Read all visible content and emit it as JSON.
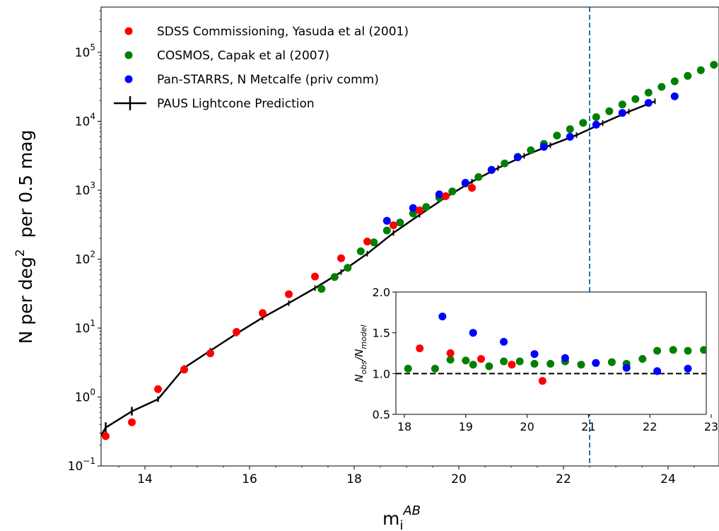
{
  "chart_data": {
    "type": "scatter",
    "main": {
      "xlabel": "m",
      "xlabel_sub": "i",
      "xlabel_sup": "AB",
      "ylabel_parts": [
        "N per deg",
        "2",
        "  per 0.5 mag"
      ],
      "xlim": [
        13,
        25
      ],
      "ylim": [
        0.1,
        500000
      ],
      "yscale": "log",
      "x_ticks": [
        14,
        16,
        18,
        20,
        22,
        24
      ],
      "y_ticks": [
        {
          "value": 0.1,
          "base": "10",
          "exp": "−1"
        },
        {
          "value": 1,
          "base": "10",
          "exp": "0"
        },
        {
          "value": 10,
          "base": "10",
          "exp": "1"
        },
        {
          "value": 100,
          "base": "10",
          "exp": "2"
        },
        {
          "value": 1000,
          "base": "10",
          "exp": "3"
        },
        {
          "value": 10000,
          "base": "10",
          "exp": "4"
        },
        {
          "value": 100000,
          "base": "10",
          "exp": "5"
        }
      ],
      "vline": {
        "x": 22.5,
        "color": "#1f77b4",
        "style": "dashed"
      },
      "legend_position": "top-left",
      "series": [
        {
          "name": "SDSS Commissioning, Yasuda et al (2001)",
          "color": "#ff0000",
          "marker": "circle",
          "points": [
            [
              13.25,
              0.27
            ],
            [
              13.75,
              0.43
            ],
            [
              14.25,
              1.3
            ],
            [
              14.75,
              2.5
            ],
            [
              15.25,
              4.3
            ],
            [
              15.75,
              8.8
            ],
            [
              16.25,
              16.5
            ],
            [
              16.75,
              31
            ],
            [
              17.25,
              56
            ],
            [
              17.75,
              103
            ],
            [
              18.25,
              180
            ],
            [
              18.75,
              310
            ],
            [
              19.25,
              510
            ],
            [
              19.75,
              820
            ],
            [
              20.25,
              1080
            ]
          ]
        },
        {
          "name": "COSMOS, Capak et al (2007)",
          "color": "#008000",
          "marker": "circle",
          "points": [
            [
              17.375,
              37
            ],
            [
              17.625,
              55
            ],
            [
              17.875,
              75
            ],
            [
              18.125,
              130
            ],
            [
              18.375,
              175
            ],
            [
              18.625,
              260
            ],
            [
              18.875,
              340
            ],
            [
              19.125,
              460
            ],
            [
              19.375,
              570
            ],
            [
              19.625,
              780
            ],
            [
              19.875,
              960
            ],
            [
              20.125,
              1250
            ],
            [
              20.375,
              1550
            ],
            [
              20.625,
              1970
            ],
            [
              20.875,
              2450
            ],
            [
              21.125,
              3050
            ],
            [
              21.375,
              3800
            ],
            [
              21.625,
              4700
            ],
            [
              21.875,
              6200
            ],
            [
              22.125,
              7700
            ],
            [
              22.375,
              9500
            ],
            [
              22.625,
              11500
            ],
            [
              22.875,
              14000
            ],
            [
              23.125,
              17500
            ],
            [
              23.375,
              21000
            ],
            [
              23.625,
              26000
            ],
            [
              23.875,
              31500
            ],
            [
              24.125,
              38000
            ],
            [
              24.375,
              45500
            ],
            [
              24.625,
              55000
            ],
            [
              24.875,
              66000
            ]
          ]
        },
        {
          "name": "Pan-STARRS, N Metcalfe (priv comm)",
          "color": "#0000ff",
          "marker": "circle",
          "points": [
            [
              18.625,
              360
            ],
            [
              19.125,
              550
            ],
            [
              19.625,
              870
            ],
            [
              20.125,
              1280
            ],
            [
              20.625,
              1970
            ],
            [
              21.125,
              3000
            ],
            [
              21.625,
              4250
            ],
            [
              22.125,
              5950
            ],
            [
              22.625,
              8900
            ],
            [
              23.125,
              13200
            ],
            [
              23.625,
              18500
            ],
            [
              24.125,
              23000
            ]
          ]
        }
      ],
      "model": {
        "name": "PAUS Lightcone Prediction",
        "color": "#000000",
        "points": [
          [
            13.0,
            0.17
          ],
          [
            13.25,
            0.36
          ],
          [
            13.75,
            0.62
          ],
          [
            14.25,
            0.93
          ],
          [
            14.75,
            2.65
          ],
          [
            15.25,
            4.7
          ],
          [
            15.75,
            8.3
          ],
          [
            16.25,
            14.2
          ],
          [
            16.75,
            23
          ],
          [
            17.25,
            38
          ],
          [
            17.75,
            65
          ],
          [
            18.25,
            120
          ],
          [
            18.75,
            240
          ],
          [
            19.25,
            440
          ],
          [
            19.75,
            790
          ],
          [
            20.25,
            1330
          ],
          [
            20.75,
            2100
          ],
          [
            21.25,
            3150
          ],
          [
            21.75,
            4500
          ],
          [
            22.25,
            6300
          ],
          [
            22.75,
            9400
          ],
          [
            23.25,
            13800
          ],
          [
            23.75,
            19500
          ]
        ],
        "errorbars": [
          [
            13.25,
            0.3,
            0.43
          ],
          [
            13.75,
            0.54,
            0.72
          ],
          [
            14.25,
            0.85,
            1.02
          ]
        ]
      }
    },
    "inset": {
      "ylabel": "N_obs/N_model",
      "ylabel_main": "N",
      "ylabel_sub1": "obs",
      "ylabel_slash": "/N",
      "ylabel_sub2": "model",
      "xlim": [
        18,
        23
      ],
      "ylim": [
        0.5,
        2.0
      ],
      "x_ticks": [
        "18",
        "19",
        "20",
        "21",
        "22",
        "23"
      ],
      "y_ticks": [
        "0.5",
        "1.0",
        "1.5",
        "2.0"
      ],
      "hline": {
        "y": 1.0,
        "color": "#000000",
        "style": "dashed"
      },
      "series": [
        {
          "name": "SDSS Commissioning, Yasuda et al (2001)",
          "color": "#ff0000",
          "points": [
            [
              18.25,
              1.31
            ],
            [
              18.75,
              1.25
            ],
            [
              19.25,
              1.18
            ],
            [
              19.75,
              1.11
            ],
            [
              20.25,
              0.91
            ]
          ]
        },
        {
          "name": "COSMOS, Capak et al (2007)",
          "color": "#008000",
          "points": [
            [
              18.06,
              1.06
            ],
            [
              18.5,
              1.06
            ],
            [
              18.75,
              1.17
            ],
            [
              19.0,
              1.16
            ],
            [
              19.12,
              1.11
            ],
            [
              19.38,
              1.09
            ],
            [
              19.62,
              1.15
            ],
            [
              19.88,
              1.15
            ],
            [
              20.12,
              1.12
            ],
            [
              20.38,
              1.12
            ],
            [
              20.62,
              1.15
            ],
            [
              20.88,
              1.11
            ],
            [
              21.12,
              1.13
            ],
            [
              21.38,
              1.14
            ],
            [
              21.62,
              1.12
            ],
            [
              21.88,
              1.18
            ],
            [
              22.12,
              1.28
            ],
            [
              22.38,
              1.29
            ],
            [
              22.62,
              1.28
            ],
            [
              22.88,
              1.29
            ],
            [
              23.12,
              1.3
            ]
          ]
        },
        {
          "name": "Pan-STARRS, N Metcalfe (priv comm)",
          "color": "#0000ff",
          "points": [
            [
              18.62,
              1.7
            ],
            [
              19.12,
              1.5
            ],
            [
              19.62,
              1.39
            ],
            [
              20.12,
              1.24
            ],
            [
              20.62,
              1.19
            ],
            [
              21.12,
              1.13
            ],
            [
              21.62,
              1.07
            ],
            [
              22.12,
              1.03
            ],
            [
              22.62,
              1.06
            ],
            [
              23.12,
              1.12
            ]
          ]
        }
      ]
    }
  }
}
